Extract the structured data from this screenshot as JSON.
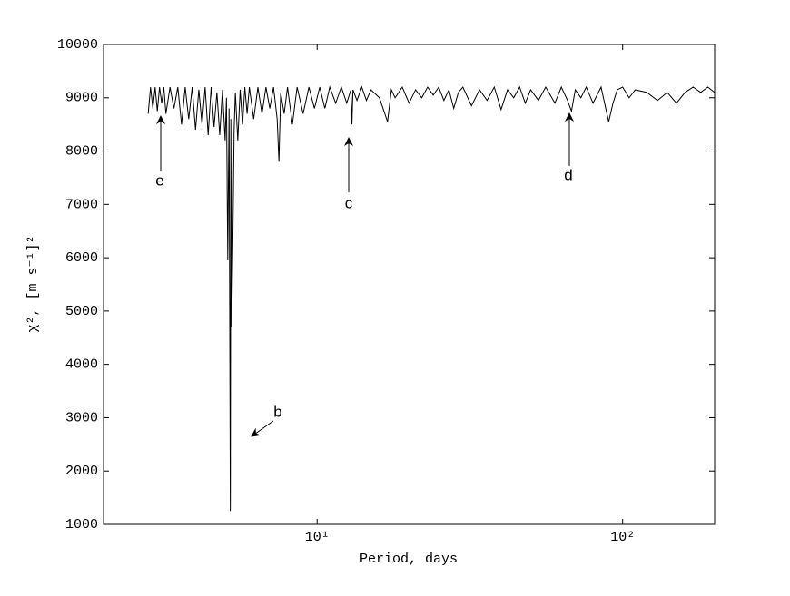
{
  "chart_data": {
    "type": "line",
    "x_label": "Period, days",
    "y_label": "χ², [m s⁻¹]²",
    "x_scale": "log",
    "xlim": [
      2,
      200
    ],
    "xticks": [
      {
        "value": 10,
        "label": "10¹"
      },
      {
        "value": 100,
        "label": "10²"
      }
    ],
    "ylim": [
      1000,
      10000
    ],
    "yticks": [
      1000,
      2000,
      3000,
      4000,
      5000,
      6000,
      7000,
      8000,
      9000,
      10000
    ],
    "color": "#000000",
    "annotations": [
      "b",
      "c",
      "d",
      "e"
    ],
    "x": [
      2.8,
      2.85,
      2.9,
      2.95,
      3.0,
      3.05,
      3.1,
      3.15,
      3.2,
      3.3,
      3.4,
      3.5,
      3.6,
      3.7,
      3.8,
      3.9,
      4.0,
      4.1,
      4.2,
      4.3,
      4.4,
      4.5,
      4.6,
      4.7,
      4.8,
      4.9,
      5.0,
      5.05,
      5.1,
      5.15,
      5.2,
      5.22,
      5.25,
      5.3,
      5.35,
      5.4,
      5.5,
      5.6,
      5.7,
      5.8,
      5.9,
      6.0,
      6.2,
      6.4,
      6.6,
      6.8,
      7.0,
      7.2,
      7.4,
      7.5,
      7.6,
      7.8,
      8.0,
      8.3,
      8.6,
      9.0,
      9.4,
      9.8,
      10.2,
      10.6,
      11.0,
      11.5,
      12.0,
      12.5,
      12.9,
      13.0,
      13.1,
      13.5,
      14.0,
      14.5,
      15,
      16,
      17,
      17.5,
      18,
      19,
      20,
      21,
      22,
      23,
      24,
      25,
      26,
      27,
      28,
      29,
      30,
      32,
      34,
      36,
      38,
      40,
      42,
      44,
      46,
      48,
      50,
      53,
      56,
      60,
      63,
      66,
      68,
      70,
      73,
      76,
      80,
      85,
      90,
      93,
      96,
      100,
      105,
      110,
      120,
      130,
      140,
      150,
      160,
      170,
      180,
      190,
      200
    ],
    "values": [
      8700,
      9200,
      8800,
      9200,
      8750,
      9200,
      8900,
      9200,
      8700,
      9200,
      8800,
      9200,
      8500,
      9200,
      8600,
      9200,
      8400,
      9150,
      8500,
      9200,
      8300,
      9200,
      8450,
      9100,
      8300,
      9150,
      8200,
      9000,
      5950,
      8800,
      1250,
      8600,
      4700,
      6300,
      8400,
      9100,
      8200,
      9150,
      8500,
      9200,
      8700,
      9200,
      8600,
      9200,
      8700,
      9200,
      8800,
      9200,
      8600,
      7800,
      9100,
      8700,
      9200,
      8500,
      9200,
      8700,
      9200,
      8800,
      9200,
      8800,
      9200,
      8900,
      9200,
      8900,
      9150,
      8500,
      9150,
      8950,
      9200,
      8950,
      9150,
      9000,
      8550,
      9150,
      9000,
      9200,
      8900,
      9150,
      9000,
      9200,
      9050,
      9200,
      8950,
      9150,
      8800,
      9100,
      9200,
      8850,
      9150,
      8950,
      9200,
      8780,
      9150,
      9000,
      9200,
      8900,
      9150,
      8950,
      9200,
      8900,
      9200,
      8950,
      8750,
      9150,
      9000,
      9200,
      8900,
      9200,
      8550,
      8900,
      9150,
      9200,
      9000,
      9150,
      9100,
      8950,
      9100,
      8900,
      9100,
      9200,
      9100,
      9200,
      9100
    ]
  }
}
